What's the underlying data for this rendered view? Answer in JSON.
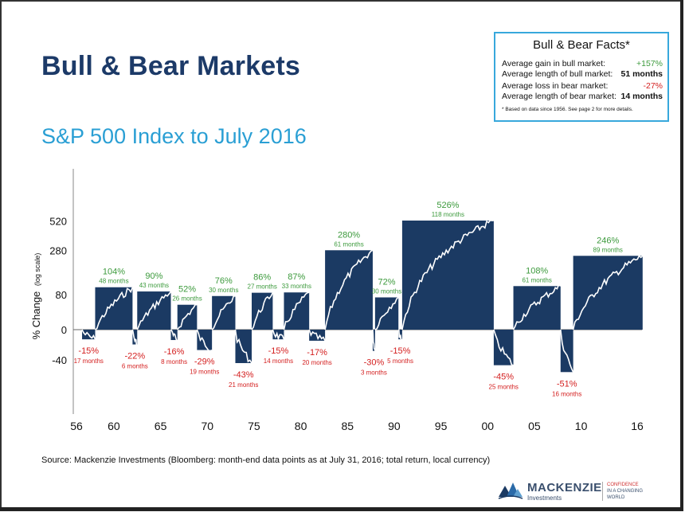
{
  "title": "Bull & Bear Markets",
  "subtitle": "S&P 500 Index to July 2016",
  "facts": {
    "title": "Bull & Bear Facts*",
    "rows": [
      {
        "label": "Average gain in bull market:",
        "value": "+157%"
      },
      {
        "label": "Average length of bull market:",
        "value": "51 months"
      },
      {
        "label": "Average loss in bear market:",
        "value": "-27%"
      },
      {
        "label": "Average length of bear market:",
        "value": "14 months"
      }
    ],
    "note": "* Based on data since 1956. See page 2 for more details."
  },
  "source": "Source: Mackenzie Investments (Bloomberg: month-end data points as at July 31, 2016; total return, local currency)",
  "logo": {
    "name": "MACKENZIE",
    "sub": "Investments",
    "tag_line1": "CONFIDENCE",
    "tag_line2": "IN A CHANGING WORLD"
  },
  "colors": {
    "bar": "#1b3a63",
    "bull_label": "#3c9a3c",
    "bear_label": "#d42020"
  },
  "chart_data": {
    "type": "bar",
    "ylabel": "% Change",
    "ylabel_note": "(log scale)",
    "y_ticks": [
      520,
      280,
      80,
      0,
      -40
    ],
    "x_ticks": [
      "56",
      "60",
      "65",
      "70",
      "75",
      "80",
      "85",
      "90",
      "95",
      "00",
      "05",
      "10",
      "16"
    ],
    "x_tick_years": [
      1956,
      1960,
      1965,
      1970,
      1975,
      1980,
      1985,
      1990,
      1995,
      2000,
      2005,
      2010,
      2016
    ],
    "markets": [
      {
        "kind": "bear",
        "start": 1956.6,
        "end": 1958.0,
        "pct": -15,
        "pct_label": "-15%",
        "months_label": "17 months"
      },
      {
        "kind": "bull",
        "start": 1958.0,
        "end": 1962.0,
        "pct": 104,
        "pct_label": "104%",
        "months_label": "48 months"
      },
      {
        "kind": "bear",
        "start": 1962.0,
        "end": 1962.5,
        "pct": -22,
        "pct_label": "-22%",
        "months_label": "6 months"
      },
      {
        "kind": "bull",
        "start": 1962.5,
        "end": 1966.1,
        "pct": 90,
        "pct_label": "90%",
        "months_label": "43 months"
      },
      {
        "kind": "bear",
        "start": 1966.1,
        "end": 1966.8,
        "pct": -16,
        "pct_label": "-16%",
        "months_label": "8 months"
      },
      {
        "kind": "bull",
        "start": 1966.8,
        "end": 1968.9,
        "pct": 52,
        "pct_label": "52%",
        "months_label": "26 months"
      },
      {
        "kind": "bear",
        "start": 1968.9,
        "end": 1970.5,
        "pct": -29,
        "pct_label": "-29%",
        "months_label": "19 months"
      },
      {
        "kind": "bull",
        "start": 1970.5,
        "end": 1973.0,
        "pct": 76,
        "pct_label": "76%",
        "months_label": "30 months"
      },
      {
        "kind": "bear",
        "start": 1973.0,
        "end": 1974.75,
        "pct": -43,
        "pct_label": "-43%",
        "months_label": "21 months"
      },
      {
        "kind": "bull",
        "start": 1974.75,
        "end": 1977.0,
        "pct": 86,
        "pct_label": "86%",
        "months_label": "27 months"
      },
      {
        "kind": "bear",
        "start": 1977.0,
        "end": 1978.2,
        "pct": -15,
        "pct_label": "-15%",
        "months_label": "14 months"
      },
      {
        "kind": "bull",
        "start": 1978.2,
        "end": 1980.9,
        "pct": 87,
        "pct_label": "87%",
        "months_label": "33 months"
      },
      {
        "kind": "bear",
        "start": 1980.9,
        "end": 1982.6,
        "pct": -17,
        "pct_label": "-17%",
        "months_label": "20 months"
      },
      {
        "kind": "bull",
        "start": 1982.6,
        "end": 1987.7,
        "pct": 280,
        "pct_label": "280%",
        "months_label": "61 months"
      },
      {
        "kind": "bear",
        "start": 1987.7,
        "end": 1987.95,
        "pct": -30,
        "pct_label": "-30%",
        "months_label": "3 months"
      },
      {
        "kind": "bull",
        "start": 1987.95,
        "end": 1990.45,
        "pct": 72,
        "pct_label": "72%",
        "months_label": "30 months"
      },
      {
        "kind": "bear",
        "start": 1990.45,
        "end": 1990.85,
        "pct": -15,
        "pct_label": "-15%",
        "months_label": "5 months"
      },
      {
        "kind": "bull",
        "start": 1990.85,
        "end": 2000.65,
        "pct": 526,
        "pct_label": "526%",
        "months_label": "118 months"
      },
      {
        "kind": "bear",
        "start": 2000.65,
        "end": 2002.75,
        "pct": -45,
        "pct_label": "-45%",
        "months_label": "25 months"
      },
      {
        "kind": "bull",
        "start": 2002.75,
        "end": 2007.8,
        "pct": 108,
        "pct_label": "108%",
        "months_label": "61 months"
      },
      {
        "kind": "bear",
        "start": 2007.8,
        "end": 2009.15,
        "pct": -51,
        "pct_label": "-51%",
        "months_label": "16 months"
      },
      {
        "kind": "bull",
        "start": 2009.15,
        "end": 2016.58,
        "pct": 246,
        "pct_label": "246%",
        "months_label": "89 months"
      }
    ]
  }
}
